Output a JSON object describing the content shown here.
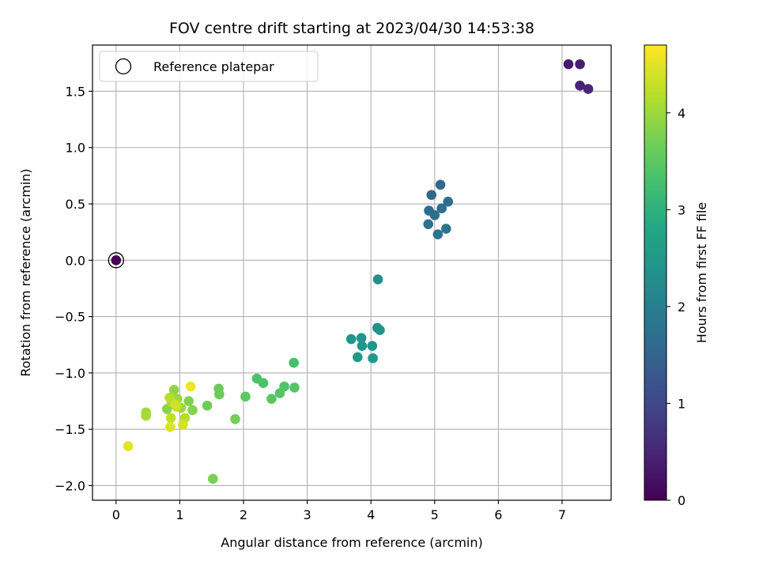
{
  "chart_data": {
    "type": "scatter",
    "title": "FOV centre drift starting at 2023/04/30 14:53:38",
    "xlabel": "Angular distance from reference (arcmin)",
    "ylabel": "Rotation from reference (arcmin)",
    "xlim": [
      -0.37,
      7.77
    ],
    "ylim": [
      -2.13,
      1.91
    ],
    "xticks": [
      0,
      1,
      2,
      3,
      4,
      5,
      6,
      7
    ],
    "xtick_labels": [
      "0",
      "1",
      "2",
      "3",
      "4",
      "5",
      "6",
      "7"
    ],
    "yticks": [
      -2.0,
      -1.5,
      -1.0,
      -0.5,
      0.0,
      0.5,
      1.0,
      1.5
    ],
    "ytick_labels": [
      "−2.0",
      "−1.5",
      "−1.0",
      "−0.5",
      "0.0",
      "0.5",
      "1.0",
      "1.5"
    ],
    "grid": true,
    "colormap": "viridis",
    "colorbar": {
      "label": "Hours from first FF file",
      "range": [
        0,
        4.7
      ],
      "ticks": [
        0,
        1,
        2,
        3,
        4
      ],
      "tick_labels": [
        "0",
        "1",
        "2",
        "3",
        "4"
      ]
    },
    "legend": {
      "location": "upper-left",
      "entries": [
        "Reference platepar"
      ]
    },
    "reference_point": {
      "x": 0.0,
      "y": 0.0,
      "hours": 0.0
    },
    "points": [
      {
        "x": 7.1,
        "y": 1.74,
        "hours": 0.35
      },
      {
        "x": 7.28,
        "y": 1.74,
        "hours": 0.4
      },
      {
        "x": 7.28,
        "y": 1.55,
        "hours": 0.45
      },
      {
        "x": 7.41,
        "y": 1.52,
        "hours": 0.5
      },
      {
        "x": 5.09,
        "y": 0.67,
        "hours": 1.6
      },
      {
        "x": 4.95,
        "y": 0.58,
        "hours": 1.62
      },
      {
        "x": 5.21,
        "y": 0.52,
        "hours": 1.65
      },
      {
        "x": 4.91,
        "y": 0.44,
        "hours": 1.67
      },
      {
        "x": 5.11,
        "y": 0.46,
        "hours": 1.7
      },
      {
        "x": 5.0,
        "y": 0.4,
        "hours": 1.72
      },
      {
        "x": 4.9,
        "y": 0.32,
        "hours": 1.75
      },
      {
        "x": 5.18,
        "y": 0.28,
        "hours": 1.77
      },
      {
        "x": 5.05,
        "y": 0.23,
        "hours": 1.8
      },
      {
        "x": 4.11,
        "y": -0.17,
        "hours": 2.35
      },
      {
        "x": 4.1,
        "y": -0.6,
        "hours": 2.37
      },
      {
        "x": 4.14,
        "y": -0.62,
        "hours": 2.4
      },
      {
        "x": 3.69,
        "y": -0.7,
        "hours": 2.42
      },
      {
        "x": 3.85,
        "y": -0.69,
        "hours": 2.44
      },
      {
        "x": 3.86,
        "y": -0.76,
        "hours": 2.46
      },
      {
        "x": 4.02,
        "y": -0.76,
        "hours": 2.48
      },
      {
        "x": 3.79,
        "y": -0.86,
        "hours": 2.5
      },
      {
        "x": 4.03,
        "y": -0.87,
        "hours": 2.52
      },
      {
        "x": 2.79,
        "y": -0.91,
        "hours": 3.3
      },
      {
        "x": 2.21,
        "y": -1.05,
        "hours": 3.35
      },
      {
        "x": 2.31,
        "y": -1.09,
        "hours": 3.37
      },
      {
        "x": 2.64,
        "y": -1.12,
        "hours": 3.4
      },
      {
        "x": 2.8,
        "y": -1.13,
        "hours": 3.42
      },
      {
        "x": 2.57,
        "y": -1.18,
        "hours": 3.45
      },
      {
        "x": 2.44,
        "y": -1.23,
        "hours": 3.47
      },
      {
        "x": 2.03,
        "y": -1.21,
        "hours": 3.5
      },
      {
        "x": 1.61,
        "y": -1.14,
        "hours": 3.6
      },
      {
        "x": 1.62,
        "y": -1.19,
        "hours": 3.62
      },
      {
        "x": 1.43,
        "y": -1.29,
        "hours": 3.65
      },
      {
        "x": 1.87,
        "y": -1.41,
        "hours": 3.7
      },
      {
        "x": 1.52,
        "y": -1.94,
        "hours": 3.75
      },
      {
        "x": 1.14,
        "y": -1.25,
        "hours": 3.8
      },
      {
        "x": 1.2,
        "y": -1.33,
        "hours": 3.82
      },
      {
        "x": 0.8,
        "y": -1.32,
        "hours": 3.85
      },
      {
        "x": 0.91,
        "y": -1.15,
        "hours": 3.9
      },
      {
        "x": 0.96,
        "y": -1.23,
        "hours": 3.95
      },
      {
        "x": 1.02,
        "y": -1.31,
        "hours": 4.0
      },
      {
        "x": 0.47,
        "y": -1.35,
        "hours": 4.05
      },
      {
        "x": 0.47,
        "y": -1.38,
        "hours": 4.08
      },
      {
        "x": 0.87,
        "y": -1.26,
        "hours": 4.1
      },
      {
        "x": 1.08,
        "y": -1.4,
        "hours": 4.15
      },
      {
        "x": 0.84,
        "y": -1.22,
        "hours": 4.2
      },
      {
        "x": 0.86,
        "y": -1.4,
        "hours": 4.25
      },
      {
        "x": 0.95,
        "y": -1.3,
        "hours": 4.3
      },
      {
        "x": 0.93,
        "y": -1.28,
        "hours": 4.35
      },
      {
        "x": 1.05,
        "y": -1.46,
        "hours": 4.4
      },
      {
        "x": 0.85,
        "y": -1.48,
        "hours": 4.45
      },
      {
        "x": 0.19,
        "y": -1.65,
        "hours": 4.5
      },
      {
        "x": 1.17,
        "y": -1.12,
        "hours": 4.6
      }
    ]
  }
}
